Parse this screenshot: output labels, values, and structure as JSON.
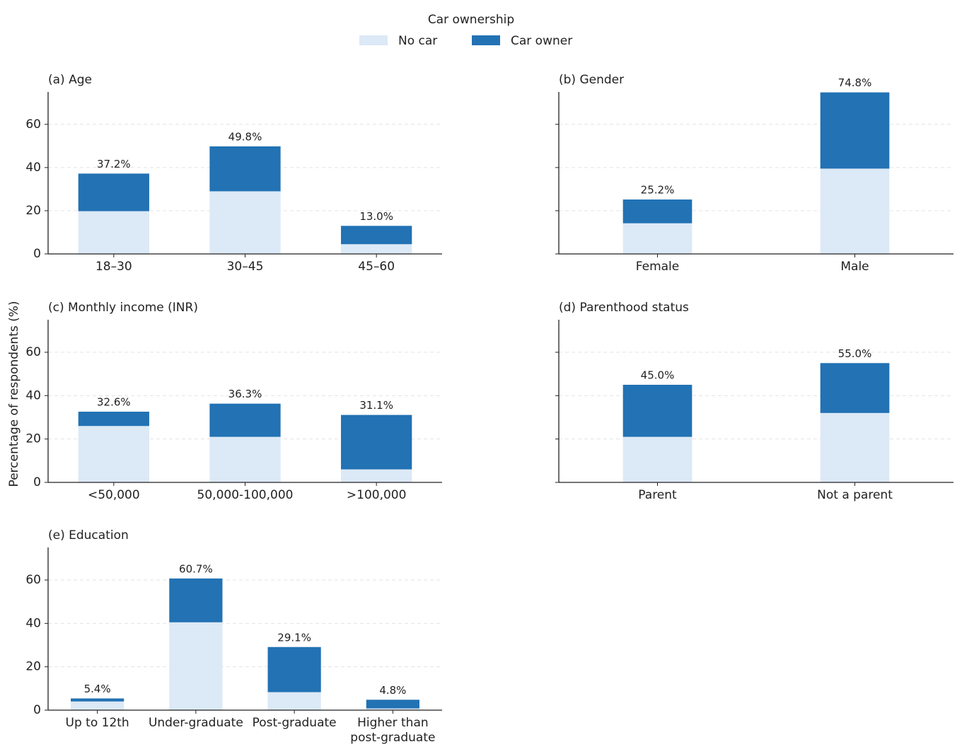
{
  "legend": {
    "title": "Car ownership",
    "entries": [
      {
        "name": "No car",
        "color": "#dce9f6"
      },
      {
        "name": "Car owner",
        "color": "#2272b4"
      }
    ]
  },
  "ylabel": "Percentage of respondents (%)",
  "chart_data": [
    {
      "type": "bar",
      "stacked": true,
      "title": "(a) Age",
      "categories": [
        "18–30",
        "30–45",
        "45–60"
      ],
      "series": [
        {
          "values": [
            19.8,
            29.0,
            4.5
          ]
        },
        {
          "values": [
            17.4,
            20.8,
            8.5
          ]
        }
      ],
      "totals": [
        37.2,
        49.8,
        13.0
      ],
      "total_labels": [
        "37.2%",
        "49.8%",
        "13.0%"
      ],
      "ylim": [
        0,
        75
      ],
      "yticks": [
        0,
        20,
        40,
        60
      ],
      "ytick_labels": true,
      "grid": true
    },
    {
      "type": "bar",
      "stacked": true,
      "title": "(b) Gender",
      "categories": [
        "Female",
        "Male"
      ],
      "series": [
        {
          "values": [
            14.2,
            39.5
          ]
        },
        {
          "values": [
            11.0,
            35.3
          ]
        }
      ],
      "totals": [
        25.2,
        74.8
      ],
      "total_labels": [
        "25.2%",
        "74.8%"
      ],
      "ylim": [
        0,
        75
      ],
      "yticks": [
        0,
        20,
        40,
        60
      ],
      "ytick_labels": false,
      "grid": true
    },
    {
      "type": "bar",
      "stacked": true,
      "title": "(c) Monthly income (INR)",
      "categories": [
        "<50,000",
        "50,000-100,000",
        ">100,000"
      ],
      "series": [
        {
          "values": [
            26.0,
            21.0,
            6.0
          ]
        },
        {
          "values": [
            6.6,
            15.3,
            25.1
          ]
        }
      ],
      "totals": [
        32.6,
        36.3,
        31.1
      ],
      "total_labels": [
        "32.6%",
        "36.3%",
        "31.1%"
      ],
      "ylim": [
        0,
        75
      ],
      "yticks": [
        0,
        20,
        40,
        60
      ],
      "ytick_labels": true,
      "grid": true
    },
    {
      "type": "bar",
      "stacked": true,
      "title": "(d) Parenthood status",
      "categories": [
        "Parent",
        "Not a parent"
      ],
      "series": [
        {
          "values": [
            21.0,
            32.0
          ]
        },
        {
          "values": [
            24.0,
            23.0
          ]
        }
      ],
      "totals": [
        45.0,
        55.0
      ],
      "total_labels": [
        "45.0%",
        "55.0%"
      ],
      "ylim": [
        0,
        75
      ],
      "yticks": [
        0,
        20,
        40,
        60
      ],
      "ytick_labels": false,
      "grid": true
    },
    {
      "type": "bar",
      "stacked": true,
      "title": "(e) Education",
      "categories": [
        "Up to 12th",
        "Under-graduate",
        "Post-graduate",
        "Higher than\npost-graduate"
      ],
      "series": [
        {
          "values": [
            4.0,
            40.5,
            8.3,
            0.8
          ]
        },
        {
          "values": [
            1.4,
            20.2,
            20.8,
            4.0
          ]
        }
      ],
      "totals": [
        5.4,
        60.7,
        29.1,
        4.8
      ],
      "total_labels": [
        "5.4%",
        "60.7%",
        "29.1%",
        "4.8%"
      ],
      "ylim": [
        0,
        75
      ],
      "yticks": [
        0,
        20,
        40,
        60
      ],
      "ytick_labels": true,
      "grid": true
    }
  ]
}
